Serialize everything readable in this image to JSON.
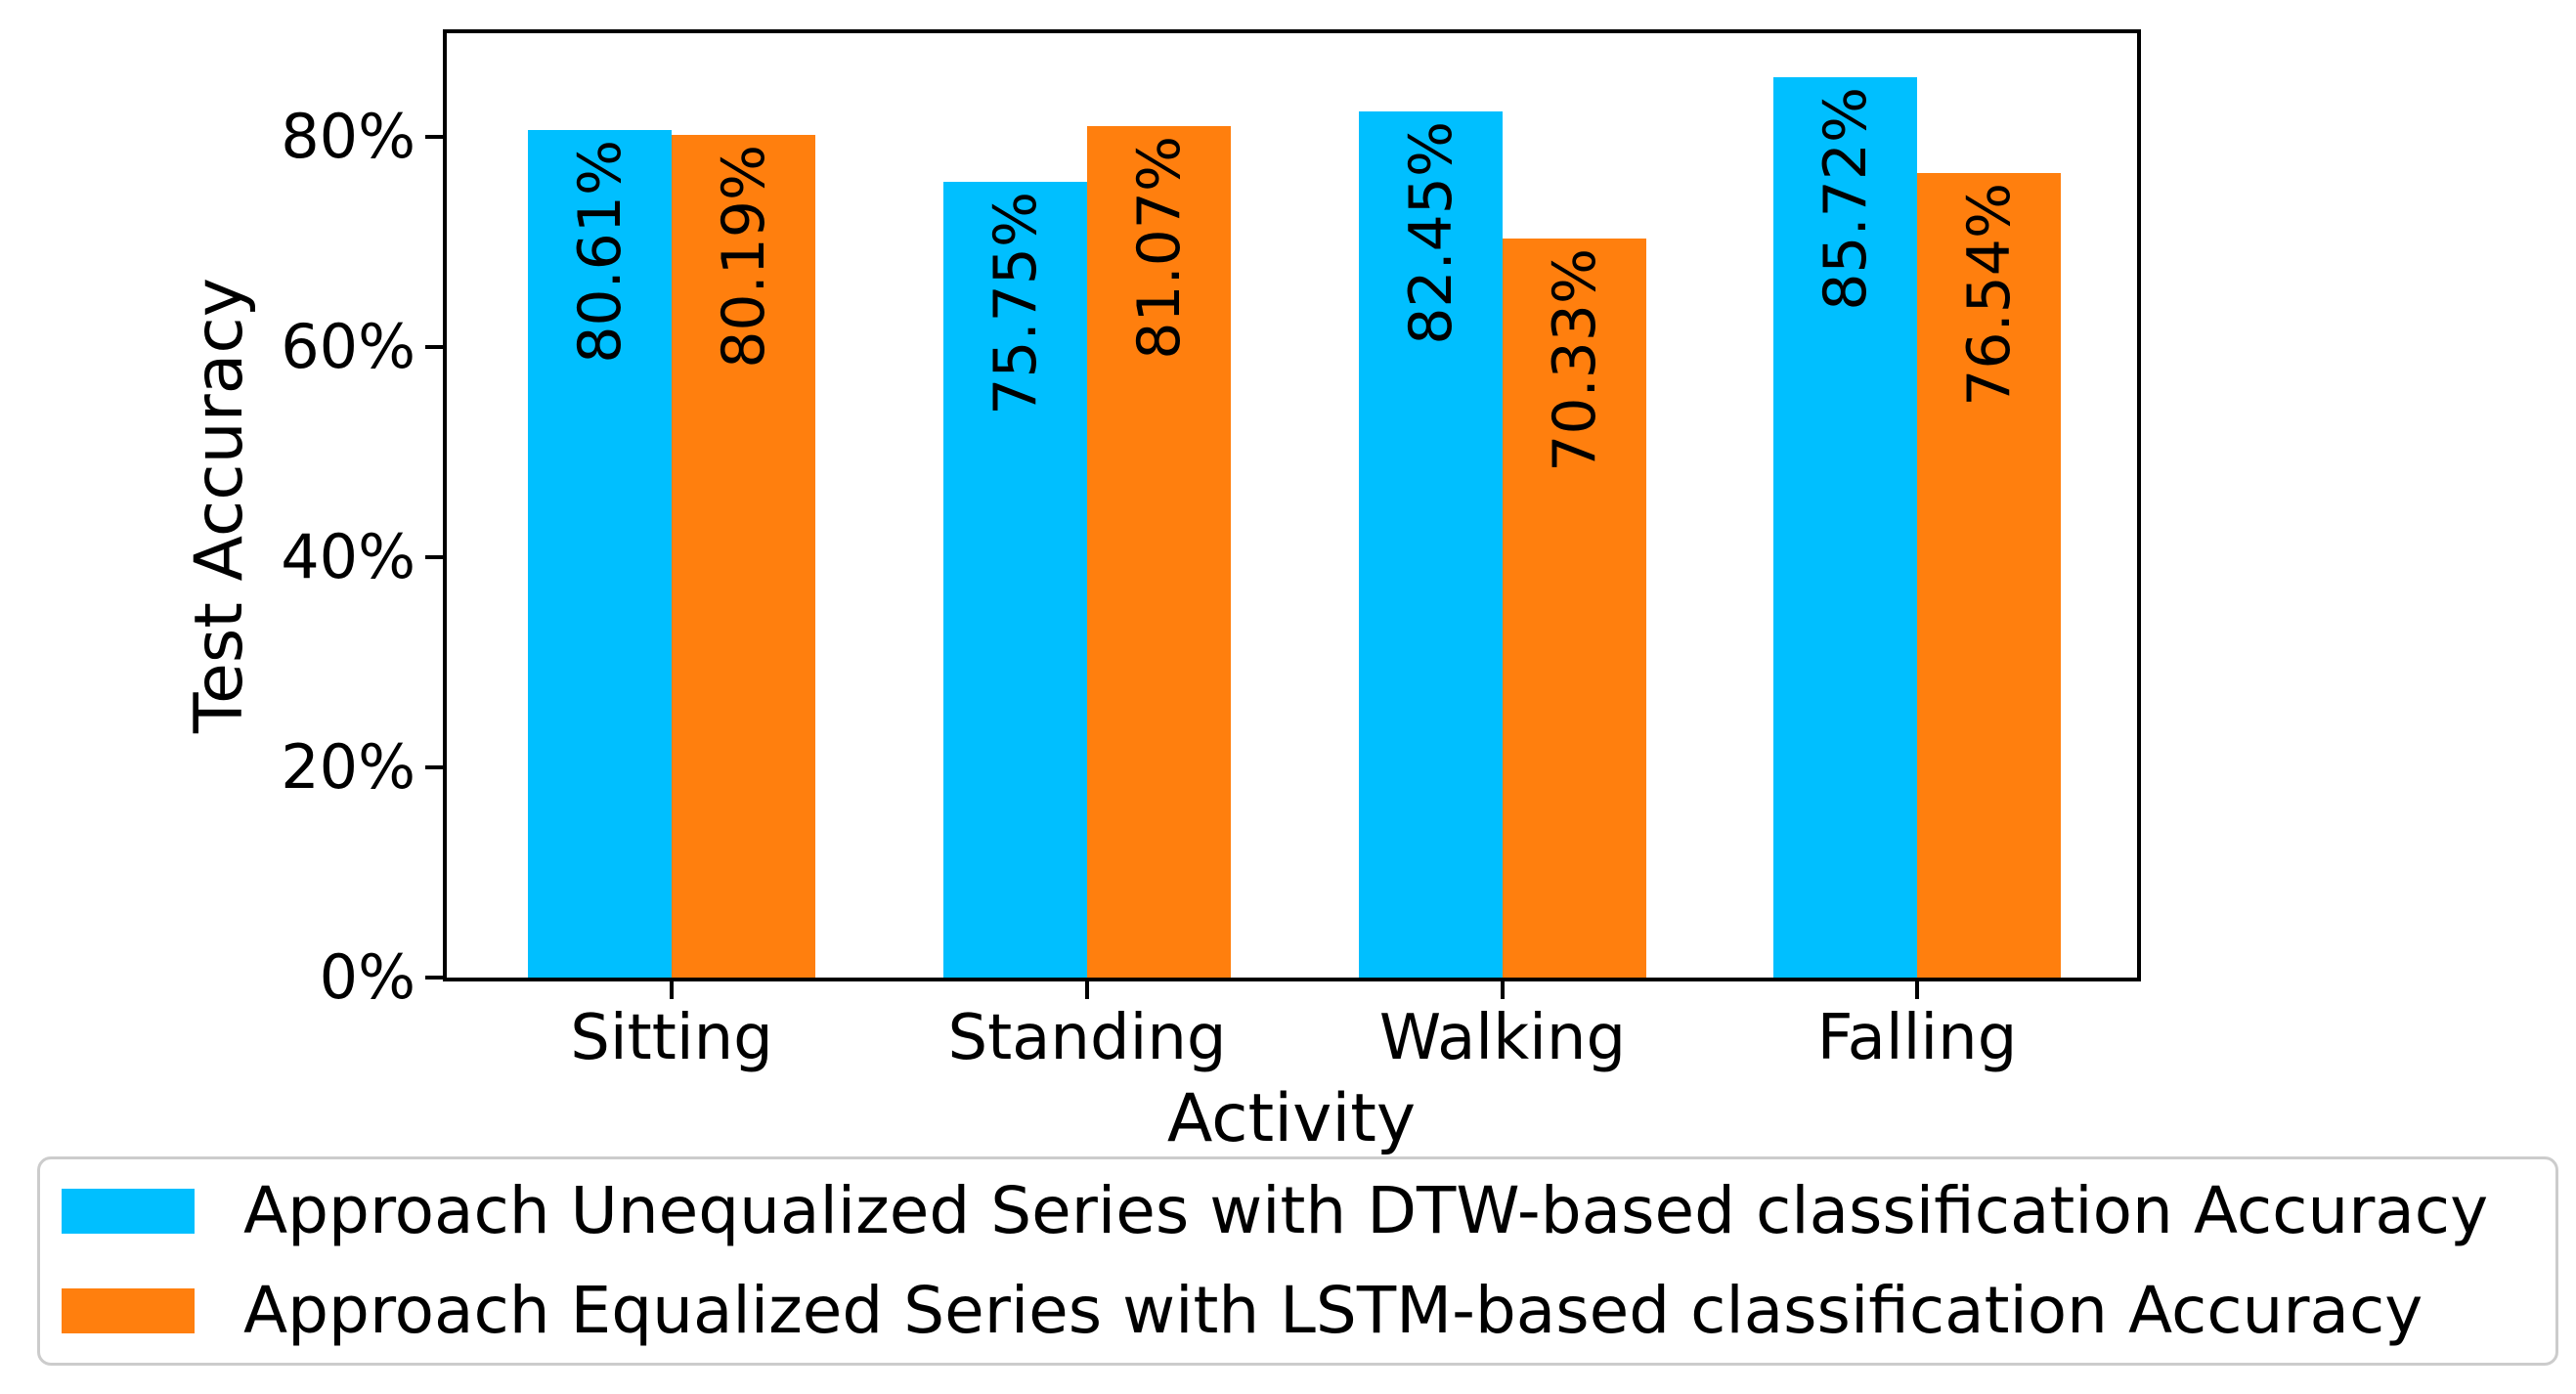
{
  "chart_data": {
    "type": "bar",
    "title": "",
    "xlabel": "Activity",
    "ylabel": "Test Accuracy",
    "categories": [
      "Sitting",
      "Standing",
      "Walking",
      "Falling"
    ],
    "series": [
      {
        "name": "Approach Unequalized Series with DTW-based classification Accuracy",
        "color": "#00BFFF",
        "values": [
          80.61,
          75.75,
          82.45,
          85.72
        ],
        "labels": [
          "80.61%",
          "75.75%",
          "82.45%",
          "85.72%"
        ]
      },
      {
        "name": "Approach Equalized Series with LSTM-based classification Accuracy",
        "color": "#FF7F0E",
        "values": [
          80.19,
          81.07,
          70.33,
          76.54
        ],
        "labels": [
          "80.19%",
          "81.07%",
          "70.33%",
          "76.54%"
        ]
      }
    ],
    "ytick_labels": [
      "0%",
      "20%",
      "40%",
      "60%",
      "80%"
    ],
    "ylim": [
      0,
      90
    ],
    "bar_label_rotation": 90,
    "grid": false,
    "legend_position": "bottom"
  }
}
